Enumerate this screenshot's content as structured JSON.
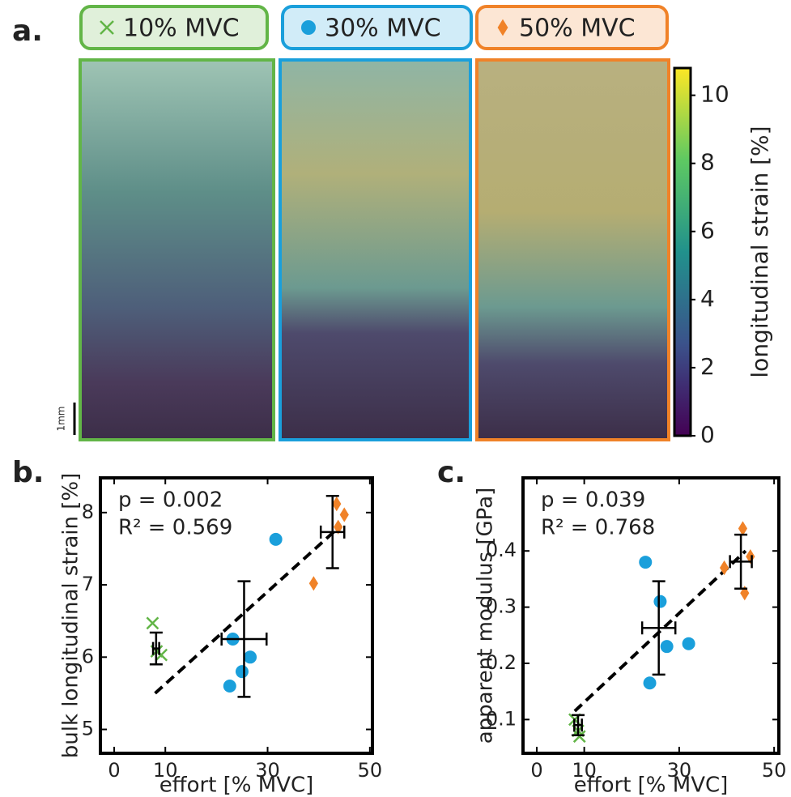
{
  "panel_a": {
    "label": "a.",
    "legend": [
      {
        "name": "10% MVC",
        "color": "#62b547",
        "marker": "x"
      },
      {
        "name": "30% MVC",
        "color": "#1a9fdb",
        "marker": "o"
      },
      {
        "name": "50% MVC",
        "color": "#f08228",
        "marker": "d"
      }
    ],
    "colorbar": {
      "label": "longitudinal strain [%]",
      "ylim": [
        0,
        10.8
      ],
      "yticks": [
        0,
        2,
        4,
        6,
        8,
        10
      ]
    },
    "scale_bar": "1mm"
  },
  "chart_data": [
    {
      "type": "scatter",
      "panel_label": "b.",
      "xlabel": "effort [% MVC]",
      "ylabel": "bulk longitudinal strain [%]",
      "annotations": [
        "p = 0.002",
        "R² = 0.569"
      ],
      "xlim": [
        -2.7,
        50.5
      ],
      "ylim": [
        4.67,
        8.48
      ],
      "xticks": [
        0,
        10,
        30,
        50
      ],
      "yticks": [
        5,
        6,
        7,
        8
      ],
      "series": [
        {
          "color": "#62b547",
          "marker": "x",
          "x": [
            7.5,
            8.3,
            9.2
          ],
          "y": [
            6.47,
            6.08,
            6.03
          ]
        },
        {
          "color": "#1a9fdb",
          "marker": "o",
          "x": [
            22.6,
            25,
            26.6,
            23.2,
            31.6
          ],
          "y": [
            5.6,
            5.8,
            6.0,
            6.25,
            7.63
          ]
        },
        {
          "color": "#f08228",
          "marker": "d",
          "x": [
            39,
            43.5,
            45,
            43.8
          ],
          "y": [
            7.02,
            8.12,
            7.97,
            7.8
          ]
        }
      ],
      "error_bars": [
        {
          "x": 8.2,
          "y": 6.12,
          "xerr": 0.6,
          "yerr": 0.22
        },
        {
          "x": 25.4,
          "y": 6.25,
          "xerr": 4.4,
          "yerr": 0.8
        },
        {
          "x": 42.7,
          "y": 7.73,
          "xerr": 2.3,
          "yerr": 0.5
        }
      ],
      "fit": {
        "x": [
          8,
          44
        ],
        "y": [
          5.5,
          7.8
        ]
      }
    },
    {
      "type": "scatter",
      "panel_label": "c.",
      "xlabel": "effort [% MVC]",
      "ylabel": "apparent modulus [GPa]",
      "annotations": [
        "p = 0.039",
        "R² = 0.768"
      ],
      "xlim": [
        -2.9,
        51
      ],
      "ylim": [
        0.04,
        0.53
      ],
      "xticks": [
        0,
        10,
        30,
        50
      ],
      "yticks": [
        0.1,
        0.2,
        0.3,
        0.4
      ],
      "series": [
        {
          "color": "#62b547",
          "marker": "x",
          "x": [
            8,
            8.7,
            9
          ],
          "y": [
            0.1,
            0.08,
            0.07
          ]
        },
        {
          "color": "#1a9fdb",
          "marker": "o",
          "x": [
            22.9,
            26,
            27.4,
            32,
            23.8
          ],
          "y": [
            0.38,
            0.31,
            0.23,
            0.235,
            0.165
          ]
        },
        {
          "color": "#f08228",
          "marker": "d",
          "x": [
            43.4,
            45,
            39.5,
            43.8
          ],
          "y": [
            0.44,
            0.39,
            0.37,
            0.325
          ]
        }
      ],
      "error_bars": [
        {
          "x": 8.7,
          "y": 0.09,
          "xerr": 0.8,
          "yerr": 0.018
        },
        {
          "x": 25.7,
          "y": 0.263,
          "xerr": 3.5,
          "yerr": 0.083
        },
        {
          "x": 43,
          "y": 0.381,
          "xerr": 2.3,
          "yerr": 0.048
        }
      ],
      "fit": {
        "x": [
          8,
          44
        ],
        "y": [
          0.115,
          0.4
        ]
      }
    }
  ]
}
